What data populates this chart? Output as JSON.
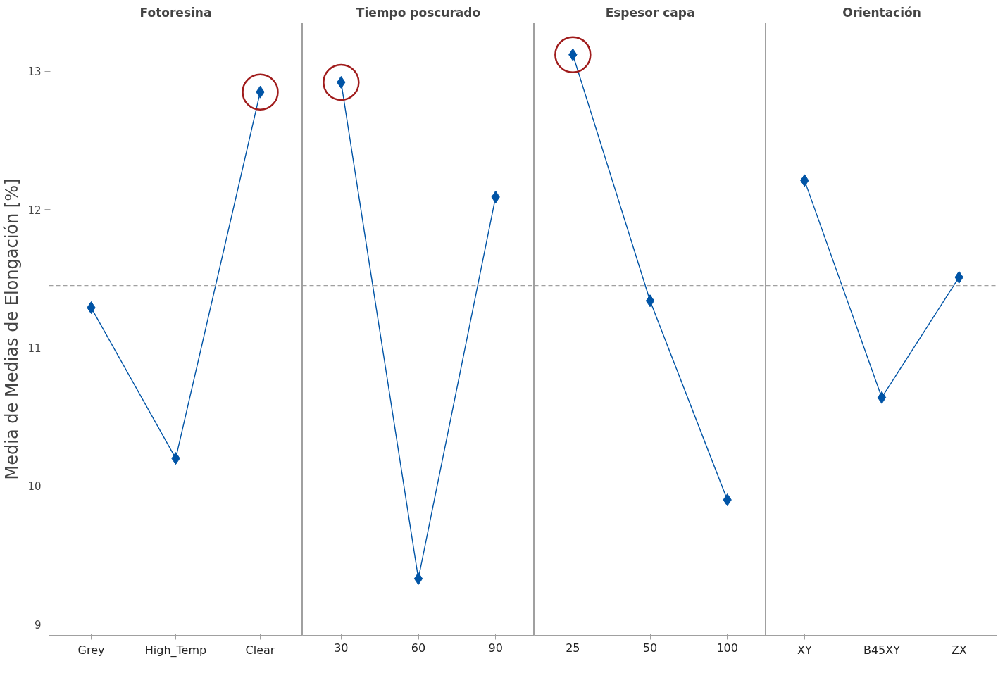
{
  "chart_data": [
    {
      "type": "line",
      "title": "Fotoresina",
      "ylabel": "Media de Medias de Elongación [%]",
      "categories": [
        "Grey",
        "High_Temp",
        "Clear"
      ],
      "ylim": [
        8.92,
        13.35
      ],
      "yticks": [
        9,
        10,
        11,
        12,
        13
      ],
      "grid": false,
      "marker": "diamond",
      "line_style": "solid",
      "series": [
        {
          "color": "#0054a6",
          "values": [
            11.29,
            10.2,
            12.85
          ]
        },
        {
          "type": "scatter",
          "marker": "circle",
          "color": "#a01c1c",
          "values": [
            null,
            null,
            12.85
          ]
        }
      ],
      "ref_lines": [
        {
          "axis": "y",
          "value": 11.45,
          "color": "#a0a0a0",
          "line_style": "dashed"
        }
      ]
    },
    {
      "type": "line",
      "title": "Tiempo poscurado",
      "categories": [
        "30",
        "60",
        "90"
      ],
      "ylim": [
        8.92,
        13.35
      ],
      "yticks": [
        9,
        10,
        11,
        12,
        13
      ],
      "tick_labels": "x",
      "grid": false,
      "marker": "diamond",
      "line_style": "solid",
      "series": [
        {
          "color": "#0054a6",
          "values": [
            12.92,
            9.33,
            12.09
          ]
        },
        {
          "type": "scatter",
          "marker": "circle",
          "color": "#a01c1c",
          "values": [
            12.92,
            null,
            null
          ]
        }
      ],
      "ref_lines": [
        {
          "axis": "y",
          "value": 11.45,
          "color": "#a0a0a0",
          "line_style": "dashed"
        }
      ]
    },
    {
      "type": "line",
      "title": "Espesor capa",
      "categories": [
        "25",
        "50",
        "100"
      ],
      "ylim": [
        8.92,
        13.35
      ],
      "yticks": [
        9,
        10,
        11,
        12,
        13
      ],
      "tick_labels": "x",
      "grid": false,
      "marker": "diamond",
      "line_style": "solid",
      "series": [
        {
          "color": "#0054a6",
          "values": [
            13.12,
            11.34,
            9.9
          ]
        },
        {
          "type": "scatter",
          "marker": "circle",
          "color": "#a01c1c",
          "values": [
            13.12,
            null,
            null
          ]
        }
      ],
      "ref_lines": [
        {
          "axis": "y",
          "value": 11.45,
          "color": "#a0a0a0",
          "line_style": "dashed"
        }
      ]
    },
    {
      "type": "line",
      "title": "Orientación",
      "categories": [
        "XY",
        "B45XY",
        "ZX"
      ],
      "ylim": [
        8.92,
        13.35
      ],
      "yticks": [
        9,
        10,
        11,
        12,
        13
      ],
      "tick_labels": "x",
      "grid": false,
      "marker": "diamond",
      "line_style": "solid",
      "series": [
        {
          "color": "#0054a6",
          "values": [
            12.21,
            10.64,
            11.51
          ]
        }
      ],
      "ref_lines": [
        {
          "axis": "y",
          "value": 11.45,
          "color": "#a0a0a0",
          "line_style": "dashed"
        }
      ]
    }
  ]
}
